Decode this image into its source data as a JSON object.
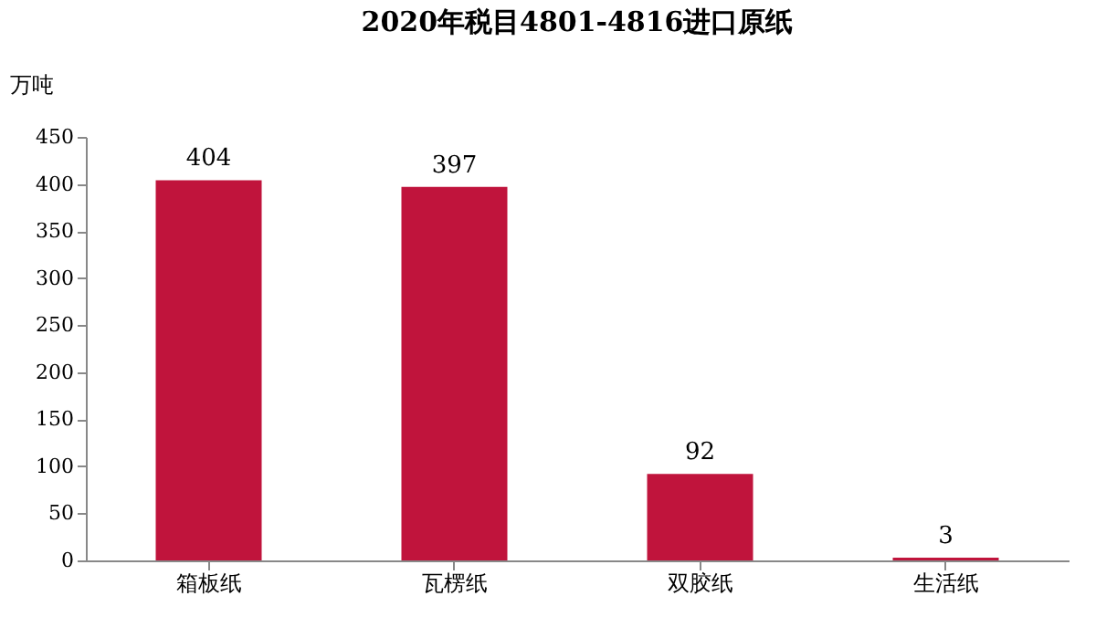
{
  "chart_data": {
    "type": "bar",
    "title": "2020年税目4801-4816进口原纸",
    "ylabel": "万吨",
    "categories": [
      "箱板纸",
      "瓦楞纸",
      "双胶纸",
      "生活纸"
    ],
    "values": [
      404,
      397,
      92,
      3
    ],
    "color": "#c0143c",
    "ylim": [
      0,
      450
    ],
    "yticks": [
      0,
      50,
      100,
      150,
      200,
      250,
      300,
      350,
      400,
      450
    ],
    "data_labels": true,
    "grid": false
  }
}
